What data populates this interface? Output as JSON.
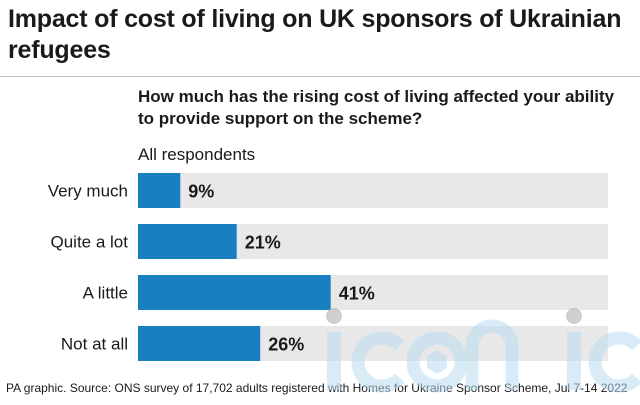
{
  "header": {
    "title": "Impact of cost of living on UK sponsors of Ukrainian refugees"
  },
  "footer": {
    "source": "PA graphic. Source: ONS survey of 17,702 adults registered with Homes for Ukraine Sponsor Scheme, Jul 7-14 2022"
  },
  "watermark": {
    "text": "iconic"
  },
  "colors": {
    "bar": "#1a7fc1",
    "track": "#e8e8e8",
    "text": "#1a1a1a"
  },
  "chart_data": {
    "type": "bar",
    "orientation": "horizontal",
    "title": "How much has the rising cost of living affected your ability to provide support on the scheme?",
    "subtitle": "All respondents",
    "categories": [
      "Very much",
      "Quite a lot",
      "A little",
      "Not at all"
    ],
    "values": [
      9,
      21,
      41,
      26
    ],
    "value_labels": [
      "9%",
      "21%",
      "41%",
      "26%"
    ],
    "unit": "%",
    "xlim": [
      0,
      100
    ],
    "grid": false,
    "legend": "none"
  }
}
